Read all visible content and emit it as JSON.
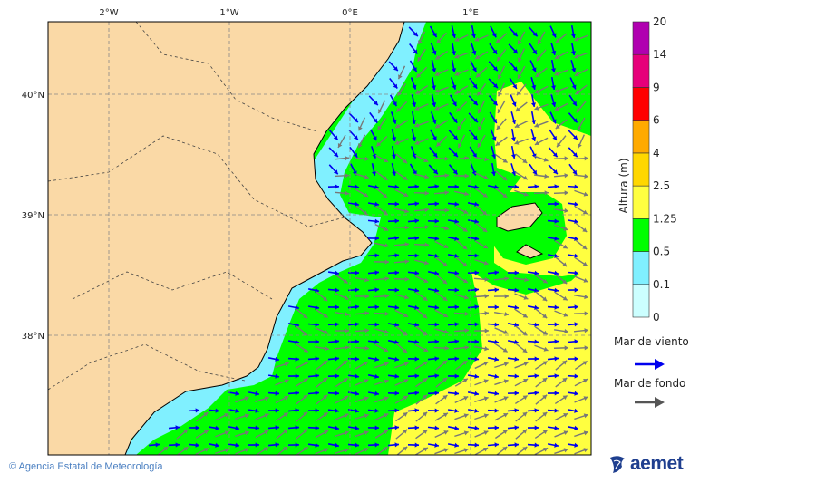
{
  "map": {
    "lon_labels": [
      "2°W",
      "1°W",
      "0°E",
      "1°E"
    ],
    "lat_labels": [
      "40°N",
      "39°N",
      "38°N"
    ],
    "colors": {
      "land": "#fad9a6",
      "sea_light": "#80f0ff",
      "sea_green": "#00ff00",
      "sea_yellow": "#ffff40",
      "wind_arrow": "#0000ee",
      "swell_arrow": "#777777"
    }
  },
  "legend": {
    "title": "Altura (m)",
    "levels": [
      "0",
      "0.1",
      "0.5",
      "1.25",
      "2.5",
      "4",
      "6",
      "9",
      "14",
      "20"
    ],
    "colors": [
      "#ccffff",
      "#80f0ff",
      "#00ff00",
      "#ffff40",
      "#ffd700",
      "#ffaa00",
      "#ff0000",
      "#e6007a",
      "#b000b0"
    ],
    "wind_sea_label": "Mar de viento",
    "swell_label": "Mar de fondo"
  },
  "footer": {
    "credit": "© Agencia Estatal de Meteorología",
    "logo_text": "aemet"
  }
}
